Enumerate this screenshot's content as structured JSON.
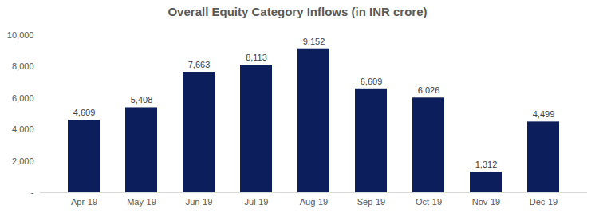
{
  "chart_data": {
    "type": "bar",
    "title": "Overall Equity Category Inflows (in INR crore)",
    "categories": [
      "Apr-19",
      "May-19",
      "Jun-19",
      "Jul-19",
      "Aug-19",
      "Sep-19",
      "Oct-19",
      "Nov-19",
      "Dec-19"
    ],
    "values": [
      4609,
      5408,
      7663,
      8113,
      9152,
      6609,
      6026,
      1312,
      4499
    ],
    "value_labels": [
      "4,609",
      "5,408",
      "7,663",
      "8,113",
      "9,152",
      "6,609",
      "6,026",
      "1,312",
      "4,499"
    ],
    "color": "#0c1e5b",
    "ylim": [
      0,
      10000
    ],
    "yticks": [
      {
        "value": 0,
        "label": "-"
      },
      {
        "value": 2000,
        "label": "2,000"
      },
      {
        "value": 4000,
        "label": "4,000"
      },
      {
        "value": 6000,
        "label": "6,000"
      },
      {
        "value": 8000,
        "label": "8,000"
      },
      {
        "value": 10000,
        "label": "10,000"
      }
    ],
    "grid": false,
    "data_labels": true
  }
}
